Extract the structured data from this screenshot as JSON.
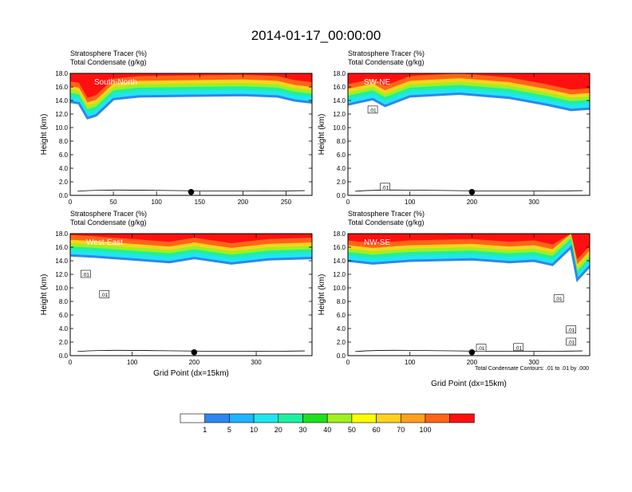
{
  "title": "2014-01-17_00:00:00",
  "colors": [
    "#ffffff",
    "#2e86f0",
    "#1fb4ff",
    "#1fe6f0",
    "#1ff0a0",
    "#1fe01f",
    "#a0f01f",
    "#ffff00",
    "#ffd21f",
    "#ffa01f",
    "#ff6418",
    "#ff1010"
  ],
  "chart_data": [
    {
      "type": "heatmap",
      "line1": "Stratosphere Tracer   (%)",
      "line2": "Total Condensate   (g/kg)",
      "label": "South-North",
      "ylabel": "Height (km)",
      "xlabel": "",
      "xmax": 280,
      "xticks": [
        "0",
        "50",
        "100",
        "150",
        "200",
        "250"
      ],
      "yticks": [
        "0.0",
        "2.0",
        "4.0",
        "6.0",
        "8.0",
        "10.0",
        "12.0",
        "14.0",
        "16.0",
        "18.0"
      ],
      "marker_x": 140,
      "boxes": [],
      "tropopause": [
        [
          0,
          14.6
        ],
        [
          10,
          14.4
        ],
        [
          20,
          12.2
        ],
        [
          30,
          12.6
        ],
        [
          50,
          15.0
        ],
        [
          80,
          15.4
        ],
        [
          140,
          15.5
        ],
        [
          200,
          15.6
        ],
        [
          240,
          15.4
        ],
        [
          260,
          14.8
        ],
        [
          280,
          14.5
        ]
      ]
    },
    {
      "type": "heatmap",
      "line1": "Stratosphere Tracer   (%)",
      "line2": "Total Condensate   (g/kg)",
      "label": "SW-NE",
      "ylabel": "Height (km)",
      "xlabel": "",
      "xmax": 390,
      "xticks": [
        "0",
        "100",
        "200",
        "300"
      ],
      "yticks": [
        "0.0",
        "2.0",
        "4.0",
        "6.0",
        "8.0",
        "10.0",
        "12.0",
        "14.0",
        "16.0",
        "18.0"
      ],
      "marker_x": 200,
      "boxes": [
        {
          "x": 40,
          "y": 12.6,
          "text": ".01"
        },
        {
          "x": 60,
          "y": 1.2,
          "text": ".01"
        }
      ],
      "tropopause": [
        [
          0,
          14.2
        ],
        [
          20,
          14.6
        ],
        [
          40,
          15.0
        ],
        [
          60,
          14.0
        ],
        [
          100,
          15.4
        ],
        [
          180,
          15.8
        ],
        [
          260,
          15.2
        ],
        [
          320,
          14.2
        ],
        [
          360,
          13.4
        ],
        [
          390,
          13.6
        ]
      ]
    },
    {
      "type": "heatmap",
      "line1": "Stratosphere Tracer   (%)",
      "line2": "Total Condensate   (g/kg)",
      "label": "West-East",
      "ylabel": "Height (km)",
      "xlabel": "Grid Point (dx=15km)",
      "xmax": 390,
      "xticks": [
        "0",
        "100",
        "200",
        "300"
      ],
      "yticks": [
        "0.0",
        "2.0",
        "4.0",
        "6.0",
        "8.0",
        "10.0",
        "12.0",
        "14.0",
        "16.0",
        "18.0"
      ],
      "marker_x": 200,
      "boxes": [
        {
          "x": 25,
          "y": 12.0,
          "text": ".01"
        },
        {
          "x": 55,
          "y": 9.0,
          "text": ".01"
        }
      ],
      "tropopause": [
        [
          0,
          15.6
        ],
        [
          40,
          15.4
        ],
        [
          100,
          15.0
        ],
        [
          160,
          14.6
        ],
        [
          200,
          15.2
        ],
        [
          260,
          14.4
        ],
        [
          320,
          15.0
        ],
        [
          390,
          15.2
        ]
      ]
    },
    {
      "type": "heatmap",
      "line1": "Stratosphere Tracer   (%)",
      "line2": "Total Condensate   (g/kg)",
      "label": "NW-SE",
      "ylabel": "Height (km)",
      "xlabel": "Grid Point (dx=15km)",
      "xmax": 390,
      "xticks": [
        "0",
        "100",
        "200",
        "300"
      ],
      "yticks": [
        "0.0",
        "2.0",
        "4.0",
        "6.0",
        "8.0",
        "10.0",
        "12.0",
        "14.0",
        "16.0",
        "18.0"
      ],
      "marker_x": 200,
      "boxes": [
        {
          "x": 340,
          "y": 8.4,
          "text": ".01"
        },
        {
          "x": 360,
          "y": 3.8,
          "text": ".01"
        },
        {
          "x": 360,
          "y": 2.0,
          "text": ".01"
        },
        {
          "x": 275,
          "y": 1.2,
          "text": ".01"
        },
        {
          "x": 215,
          "y": 1.1,
          "text": ".01"
        }
      ],
      "tropopause": [
        [
          0,
          14.8
        ],
        [
          40,
          14.4
        ],
        [
          100,
          14.8
        ],
        [
          200,
          15.0
        ],
        [
          260,
          14.6
        ],
        [
          300,
          14.8
        ],
        [
          330,
          14.2
        ],
        [
          360,
          16.8
        ],
        [
          370,
          12.0
        ],
        [
          390,
          14.0
        ]
      ]
    }
  ],
  "contour_note": "Total Condensate Contours: .01 to .01 by .000",
  "legend": {
    "labels": [
      "1",
      "5",
      "10",
      "20",
      "30",
      "40",
      "50",
      "60",
      "70",
      "100"
    ],
    "colors": [
      "#ffffff",
      "#2e86f0",
      "#1fb4ff",
      "#1fe6f0",
      "#1ff0a0",
      "#1fe01f",
      "#a0f01f",
      "#ffff00",
      "#ffd21f",
      "#ffa01f",
      "#ff6418",
      "#ff1010"
    ]
  }
}
